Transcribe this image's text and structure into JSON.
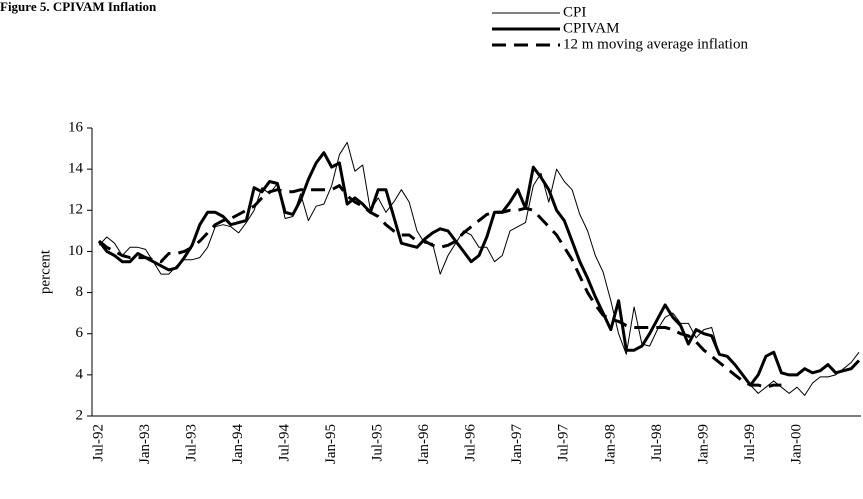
{
  "chart_data": {
    "type": "line",
    "title": "Figure 5. CPIVAM Inflation",
    "y_label": "percent",
    "categories": [
      "Jul-92",
      null,
      null,
      null,
      null,
      null,
      "Jan-93",
      null,
      null,
      null,
      null,
      null,
      "Jul-93",
      null,
      null,
      null,
      null,
      null,
      "Jan-94",
      null,
      null,
      null,
      null,
      null,
      "Jul-94",
      null,
      null,
      null,
      null,
      null,
      "Jan-95",
      null,
      null,
      null,
      null,
      null,
      "Jul-95",
      null,
      null,
      null,
      null,
      null,
      "Jan-96",
      null,
      null,
      null,
      null,
      null,
      "Jul-96",
      null,
      null,
      null,
      null,
      null,
      "Jan-97",
      null,
      null,
      null,
      null,
      null,
      "Jul-97",
      null,
      null,
      null,
      null,
      null,
      "Jan-98",
      null,
      null,
      null,
      null,
      null,
      "Jul-98",
      null,
      null,
      null,
      null,
      null,
      "Jan-99",
      null,
      null,
      null,
      null,
      null,
      "Jul-99",
      null,
      null,
      null,
      null,
      null,
      "Jan-00",
      null,
      null,
      null,
      null,
      null,
      null,
      null,
      null
    ],
    "series": [
      {
        "name": "CPI",
        "color": "#000000",
        "width": 1,
        "style": "solid",
        "values": [
          10.3,
          10.7,
          10.4,
          9.8,
          10.2,
          10.2,
          10.1,
          9.5,
          8.9,
          8.9,
          9.3,
          9.6,
          9.6,
          9.7,
          10.2,
          11.2,
          11.3,
          11.2,
          10.9,
          11.4,
          12.0,
          13.1,
          12.8,
          13.3,
          11.6,
          11.7,
          12.8,
          11.5,
          12.2,
          12.3,
          13.2,
          14.7,
          15.3,
          13.9,
          14.2,
          12.0,
          12.6,
          11.9,
          12.4,
          13.0,
          12.4,
          11.0,
          10.4,
          10.4,
          8.9,
          9.8,
          10.4,
          11.0,
          10.8,
          10.2,
          10.2,
          9.5,
          9.8,
          11.0,
          11.2,
          11.4,
          13.2,
          13.8,
          12.4,
          14.0,
          13.4,
          13.0,
          11.8,
          11.0,
          9.8,
          9.0,
          7.6,
          6.0,
          5.0,
          7.3,
          5.5,
          5.4,
          6.2,
          6.8,
          7.0,
          6.5,
          6.5,
          5.8,
          6.2,
          6.3,
          5.0,
          4.9,
          4.5,
          4.0,
          3.5,
          3.1,
          3.4,
          3.7,
          3.4,
          3.1,
          3.4,
          3.0,
          3.6,
          3.9,
          3.9,
          4.0,
          4.3,
          4.6,
          5.1
        ]
      },
      {
        "name": "CPIVAM",
        "color": "#000000",
        "width": 3,
        "style": "solid",
        "values": [
          10.5,
          10.0,
          9.8,
          9.5,
          9.5,
          9.9,
          9.7,
          9.5,
          9.3,
          9.1,
          9.2,
          9.7,
          10.3,
          11.3,
          11.9,
          11.9,
          11.7,
          11.3,
          11.4,
          11.5,
          13.1,
          12.9,
          13.4,
          13.3,
          11.9,
          11.8,
          12.5,
          13.5,
          14.3,
          14.8,
          14.1,
          14.3,
          12.3,
          12.6,
          12.3,
          11.9,
          13.0,
          13.0,
          11.7,
          10.4,
          10.3,
          10.2,
          10.6,
          10.9,
          11.1,
          11.0,
          10.5,
          10.0,
          9.5,
          9.8,
          10.7,
          11.9,
          11.9,
          12.4,
          13.0,
          12.1,
          14.1,
          13.6,
          13.0,
          12.0,
          11.5,
          10.5,
          9.5,
          8.7,
          7.8,
          7.0,
          6.2,
          7.6,
          5.2,
          5.2,
          5.4,
          6.0,
          6.7,
          7.4,
          6.8,
          6.4,
          5.5,
          6.2,
          6.0,
          5.9,
          5.0,
          4.9,
          4.5,
          4.0,
          3.5,
          4.0,
          4.9,
          5.1,
          4.1,
          4.0,
          4.0,
          4.3,
          4.1,
          4.2,
          4.5,
          4.1,
          4.2,
          4.3,
          4.7
        ]
      },
      {
        "name": "12 m moving average inflation",
        "color": "#000000",
        "width": 3,
        "style": "dashed",
        "values": [
          10.5,
          10.2,
          10.0,
          9.8,
          9.7,
          9.7,
          9.7,
          9.6,
          9.5,
          9.9,
          9.9,
          10.0,
          10.2,
          10.5,
          10.9,
          11.3,
          11.5,
          11.6,
          11.8,
          12.0,
          12.2,
          12.6,
          12.9,
          13.0,
          12.9,
          12.9,
          13.0,
          13.0,
          13.0,
          13.0,
          13.0,
          13.2,
          12.7,
          12.4,
          12.2,
          11.9,
          11.7,
          11.3,
          11.0,
          10.8,
          10.8,
          10.5,
          10.5,
          10.3,
          10.2,
          10.3,
          10.5,
          10.9,
          11.2,
          11.5,
          11.8,
          11.9,
          11.9,
          12.0,
          12.0,
          12.1,
          12.0,
          11.6,
          11.2,
          10.8,
          10.2,
          9.6,
          8.8,
          8.0,
          7.4,
          6.9,
          6.7,
          6.6,
          6.4,
          6.3,
          6.3,
          6.3,
          6.3,
          6.3,
          6.2,
          6.0,
          5.9,
          5.6,
          5.2,
          4.9,
          4.6,
          4.3,
          4.0,
          3.7,
          3.5,
          3.5,
          3.4,
          3.5,
          3.5,
          null,
          null,
          null,
          null,
          null,
          null,
          null,
          null,
          null,
          null
        ]
      }
    ],
    "ylim": [
      2,
      16
    ],
    "yticks": [
      2,
      4,
      6,
      8,
      10,
      12,
      14,
      16
    ],
    "grid": false,
    "legend": "top-right"
  }
}
